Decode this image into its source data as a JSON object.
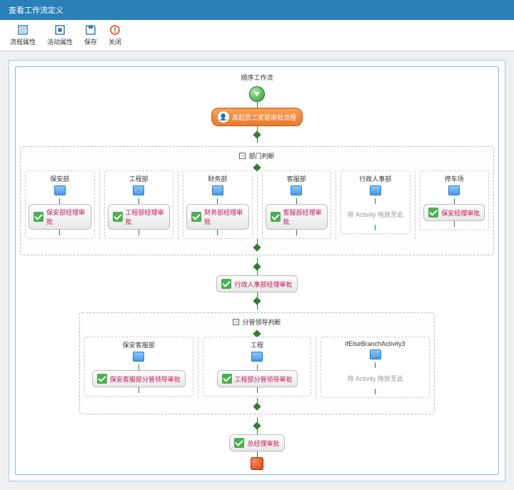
{
  "title_bar": "查看工作流定义",
  "toolbar": {
    "process_props": "流程属性",
    "activity_props": "活动属性",
    "save": "保存",
    "close": "关闭"
  },
  "workflow": {
    "title": "顺序工作流",
    "start_activity": "发起员工奖惩审批流程",
    "dept_decision": {
      "label": "部门判断",
      "branches": [
        {
          "name": "保安部",
          "approval": "保安部经理审批"
        },
        {
          "name": "工程部",
          "approval": "工程部经理审批"
        },
        {
          "name": "财务部",
          "approval": "财务部经理审批"
        },
        {
          "name": "客服部",
          "approval": "客服部经理审批"
        },
        {
          "name": "行政人事部",
          "placeholder": "将 Activity 拖放至此"
        },
        {
          "name": "停车场",
          "approval": "保安经理审批"
        }
      ]
    },
    "hr_approval": "行政人事部经理审批",
    "leader_decision": {
      "label": "分管领导判断",
      "branches": [
        {
          "name": "保安客服部",
          "approval": "保安客服部分管领导审批"
        },
        {
          "name": "工程",
          "approval": "工程部分管领导审批"
        },
        {
          "name": "ifElseBranchActivity3",
          "placeholder": "将 Activity 拖放至此"
        }
      ]
    },
    "final_approval": "总经理审批"
  },
  "colors": {
    "title_bg": "#2980b9",
    "connector": "#2e7d32",
    "approval_text": "#c2185b",
    "start_gradient": "#e67a2e",
    "check": "#4caf50"
  }
}
